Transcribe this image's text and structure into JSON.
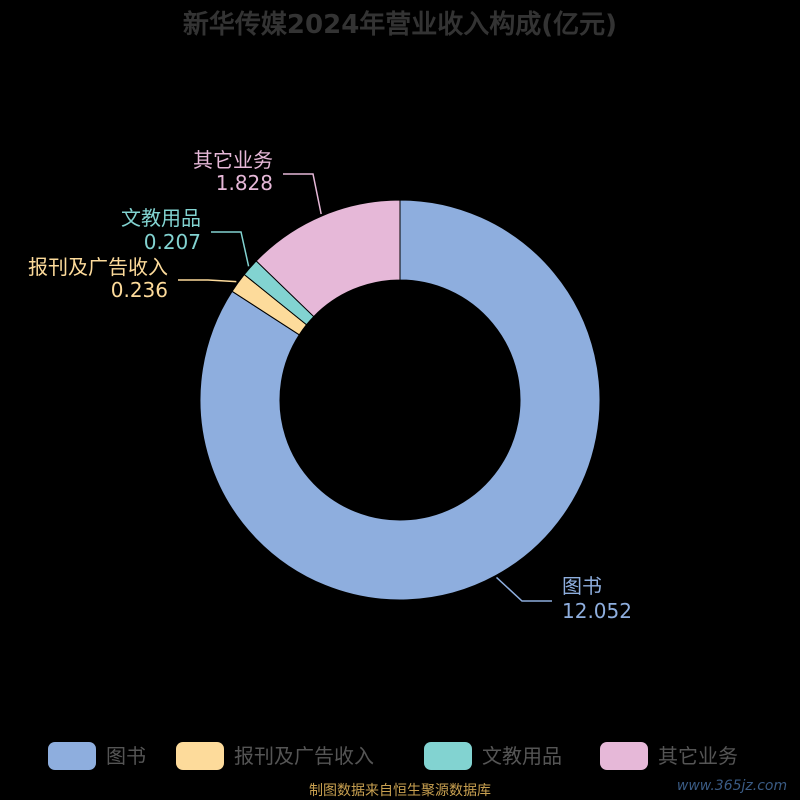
{
  "chart_data": {
    "type": "pie",
    "title": "新华传媒2024年营业收入构成(亿元)",
    "slices": [
      {
        "name": "图书",
        "value": 12.052,
        "value_label": "12.052",
        "color": "#8eaede"
      },
      {
        "name": "报刊及广告收入",
        "value": 0.236,
        "value_label": "0.236",
        "color": "#fddb9b"
      },
      {
        "name": "文教用品",
        "value": 0.207,
        "value_label": "0.207",
        "color": "#82d3d1"
      },
      {
        "name": "其它业务",
        "value": 1.828,
        "value_label": "1.828",
        "color": "#e6b8d8"
      }
    ],
    "legend_position": "bottom"
  },
  "colors": {
    "background": "#000000",
    "title": "#333333",
    "legend_text": "#555555",
    "source": "#c8a050",
    "watermark": "#3a5b84"
  },
  "source_text": "制图数据来自恒生聚源数据库",
  "watermark": "www.365jz.com"
}
